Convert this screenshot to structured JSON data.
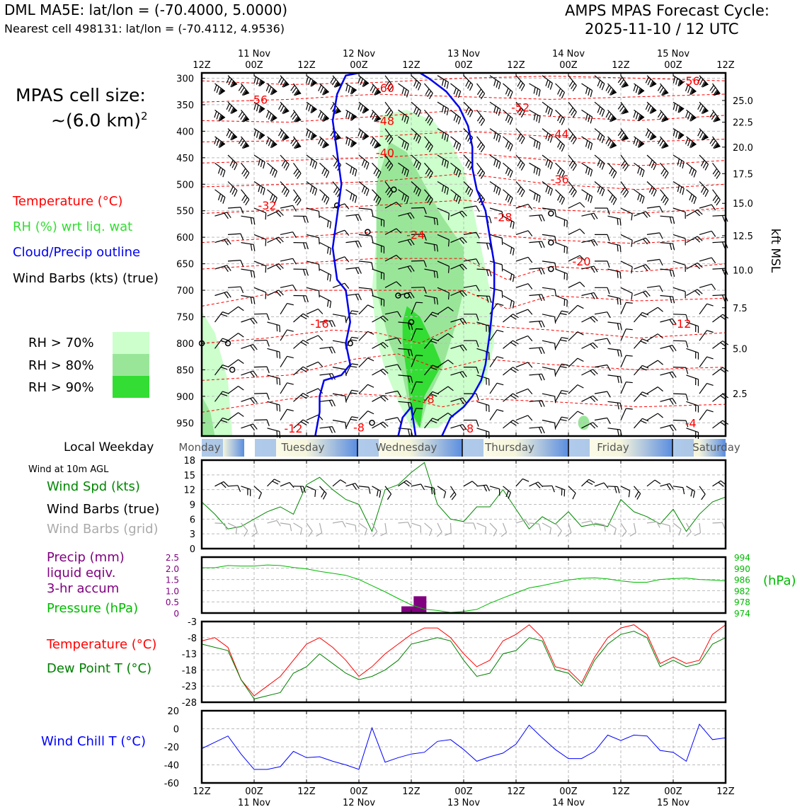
{
  "header": {
    "station": "DML MA5E: lat/lon = (-70.4000, 5.0000)",
    "nearest": "Nearest cell 498131: lat/lon = (-70.4112, 4.9536)",
    "cycle_title": "AMPS MPAS Forecast Cycle:",
    "cycle_date": "2025-11-10 / 12 UTC"
  },
  "legend": {
    "cell_size_1": "MPAS cell size:",
    "cell_size_2": "~(6.0 km)",
    "cell_size_exp": "2",
    "temperature": "Temperature (°C)",
    "rh": "RH (%) wrt liq. wat",
    "cloud": "Cloud/Precip outline",
    "wind": "Wind Barbs (kts) (true)",
    "rh70": "RH > 70%",
    "rh80": "RH > 80%",
    "rh90": "RH > 90%"
  },
  "colors": {
    "temperature": "#ff0000",
    "rh_label": "#33dd33",
    "cloud": "#0000ee",
    "rh70": "#ccffcc",
    "rh80": "#99e699",
    "rh90": "#33dd33",
    "precip": "#800080",
    "pressure": "#00bb00",
    "wind_speed": "#008800",
    "dew_point": "#008000",
    "wind_chill": "#0000ff",
    "grid_barbs": "#aaaaaa"
  },
  "time_axis": {
    "tick_labels": [
      "12Z",
      "00Z",
      "12Z",
      "00Z",
      "12Z",
      "00Z",
      "12Z",
      "00Z",
      "12Z",
      "00Z",
      "12Z"
    ],
    "date_labels": [
      "11 Nov",
      "12 Nov",
      "13 Nov",
      "14 Nov",
      "15 Nov"
    ],
    "date_tick_index": [
      1,
      3,
      5,
      7,
      9
    ]
  },
  "weekday": {
    "label": "Local Weekday",
    "days": [
      "Monday",
      "Tuesday",
      "Wednesday",
      "Thursday",
      "Friday",
      "Saturday"
    ]
  },
  "chart_data": [
    {
      "type": "heatmap",
      "title": "Vertical profile",
      "y_left_ticks": [
        300,
        350,
        400,
        450,
        500,
        550,
        600,
        650,
        700,
        750,
        800,
        850,
        900,
        950
      ],
      "y_right_label": "kft MSL",
      "y_right_ticks": [
        {
          "label": "25.0",
          "hpa": 342
        },
        {
          "label": "22.5",
          "hpa": 383
        },
        {
          "label": "20.0",
          "hpa": 430
        },
        {
          "label": "17.5",
          "hpa": 480
        },
        {
          "label": "15.0",
          "hpa": 536
        },
        {
          "label": "12.5",
          "hpa": 597
        },
        {
          "label": "10.0",
          "hpa": 662
        },
        {
          "label": "7.5",
          "hpa": 733
        },
        {
          "label": "5.0",
          "hpa": 810
        },
        {
          "label": "2.5",
          "hpa": 895
        }
      ],
      "ylim": [
        290,
        975
      ],
      "temperature_labels": [
        {
          "text": "-56",
          "hours": 13,
          "hpa": 340
        },
        {
          "text": "-60",
          "hours": 42,
          "hpa": 318
        },
        {
          "text": "-56",
          "hours": 112,
          "hpa": 305
        },
        {
          "text": "-52",
          "hours": 73,
          "hpa": 355
        },
        {
          "text": "-48",
          "hours": 42,
          "hpa": 380
        },
        {
          "text": "-44",
          "hours": 82,
          "hpa": 405
        },
        {
          "text": "-40",
          "hours": 42,
          "hpa": 440
        },
        {
          "text": "-36",
          "hours": 82,
          "hpa": 490
        },
        {
          "text": "-32",
          "hours": 15,
          "hpa": 540
        },
        {
          "text": "-28",
          "hours": 69,
          "hpa": 562
        },
        {
          "text": "-24",
          "hours": 49,
          "hpa": 595
        },
        {
          "text": "-20",
          "hours": 87,
          "hpa": 645
        },
        {
          "text": "-16",
          "hours": 27,
          "hpa": 763
        },
        {
          "text": "-12",
          "hours": 110,
          "hpa": 763
        },
        {
          "text": "-12",
          "hours": 21,
          "hpa": 960
        },
        {
          "text": "-8",
          "hours": 36,
          "hpa": 958
        },
        {
          "text": "-8",
          "hours": 52,
          "hpa": 905
        },
        {
          "text": "-8",
          "hours": 61,
          "hpa": 960
        },
        {
          "text": "-4",
          "hours": 112,
          "hpa": 950
        }
      ]
    },
    {
      "type": "line",
      "title": "Wind at 10m AGL",
      "labels": [
        "Wind Spd (kts)",
        "Wind Barbs (true)",
        "Wind Barbs (grid)"
      ],
      "ylim": [
        0,
        18
      ],
      "y_ticks": [
        0,
        3,
        6,
        9,
        12,
        15,
        18
      ],
      "x_hours": [
        0,
        3,
        6,
        9,
        12,
        15,
        18,
        21,
        24,
        27,
        30,
        33,
        36,
        39,
        42,
        45,
        48,
        51,
        54,
        57,
        60,
        63,
        66,
        69,
        72,
        75,
        78,
        81,
        84,
        87,
        90,
        93,
        96,
        99,
        102,
        105,
        108,
        111,
        114,
        117,
        120
      ],
      "wind_speed": [
        9.5,
        7,
        4,
        4.5,
        6,
        7.5,
        8.5,
        7,
        13,
        14.5,
        12,
        10,
        9,
        3.5,
        12,
        13,
        15.5,
        17.5,
        9,
        6,
        5.5,
        8.5,
        8.5,
        12,
        8,
        4,
        6.5,
        5,
        7.5,
        4.5,
        5,
        4.5,
        10,
        7.5,
        6.5,
        5,
        8,
        3.5,
        7,
        9.5,
        10.5
      ]
    },
    {
      "type": "bar",
      "title": "Precip and Pressure",
      "labels": [
        "Precip (mm)",
        "liquid eqiv.",
        "3-hr accum",
        "Pressure (hPa)"
      ],
      "precip_ylim": [
        0,
        2.5
      ],
      "precip_ticks": [
        "0",
        "0.5",
        "1.0",
        "1.5",
        "2.0",
        "2.5"
      ],
      "precip_bars": [
        {
          "hours": 47.2,
          "value": 0.3
        },
        {
          "hours": 50,
          "value": 0.75
        }
      ],
      "pressure_ylim": [
        974,
        994
      ],
      "pressure_ticks": [
        974,
        978,
        982,
        986,
        990,
        994
      ],
      "pressure_unit": "(hPa)",
      "pressure_hours": [
        0,
        3,
        6,
        9,
        12,
        15,
        18,
        21,
        24,
        27,
        30,
        33,
        36,
        39,
        42,
        45,
        48,
        51,
        54,
        57,
        60,
        63,
        66,
        69,
        72,
        75,
        78,
        81,
        84,
        87,
        90,
        93,
        96,
        99,
        102,
        105,
        108,
        111,
        114,
        117,
        120
      ],
      "pressure": [
        990.2,
        990.2,
        991,
        990.8,
        990.8,
        991.2,
        991,
        990.3,
        989.8,
        988.9,
        988.2,
        987.5,
        986,
        983.8,
        981.6,
        979.2,
        976.9,
        975.4,
        974.9,
        974.2,
        974.6,
        975.3,
        977.5,
        979.4,
        981.2,
        983,
        983.8,
        984.8,
        985.8,
        986.4,
        986.6,
        986.2,
        985.5,
        985,
        985,
        986,
        986.3,
        986.5,
        986,
        985.8,
        985.5
      ]
    },
    {
      "type": "line",
      "title": "Temperature and Dew Point",
      "labels": [
        "Temperature (°C)",
        "Dew Point T (°C)"
      ],
      "ylim": [
        -28,
        -3
      ],
      "y_ticks": [
        -28,
        -23,
        -18,
        -13,
        -8,
        -3
      ],
      "x_hours": [
        0,
        3,
        6,
        9,
        12,
        15,
        18,
        21,
        24,
        27,
        30,
        33,
        36,
        39,
        42,
        45,
        48,
        51,
        54,
        57,
        60,
        63,
        66,
        69,
        72,
        75,
        78,
        81,
        84,
        87,
        90,
        93,
        96,
        99,
        102,
        105,
        108,
        111,
        114,
        117,
        120
      ],
      "temperature": [
        -9,
        -8,
        -11,
        -21,
        -26,
        -23,
        -20,
        -15,
        -10,
        -8,
        -11,
        -15,
        -20,
        -17,
        -13,
        -10,
        -7,
        -5,
        -5,
        -8,
        -13,
        -17,
        -15,
        -9,
        -7,
        -4,
        -8,
        -17,
        -18,
        -22,
        -14,
        -8,
        -5,
        -4,
        -7,
        -16,
        -14,
        -16,
        -15,
        -7,
        -4
      ],
      "dew_point": [
        -10,
        -11,
        -12,
        -21,
        -27,
        -26,
        -25,
        -19,
        -17,
        -13,
        -16,
        -19,
        -21,
        -20,
        -18,
        -15,
        -10,
        -9,
        -8,
        -9,
        -15,
        -20,
        -19,
        -13,
        -12,
        -8,
        -9,
        -18,
        -19,
        -23,
        -15,
        -10,
        -7,
        -6,
        -8,
        -17,
        -15,
        -17,
        -16,
        -10,
        -8
      ]
    },
    {
      "type": "line",
      "title": "Wind Chill",
      "labels": [
        "Wind Chill T (°C)"
      ],
      "ylim": [
        -60,
        20
      ],
      "y_ticks": [
        -60,
        -40,
        -20,
        0,
        20
      ],
      "x_hours": [
        0,
        3,
        6,
        9,
        12,
        15,
        18,
        21,
        24,
        27,
        30,
        33,
        36,
        39,
        42,
        45,
        48,
        51,
        54,
        57,
        60,
        63,
        66,
        69,
        72,
        75,
        78,
        81,
        84,
        87,
        90,
        93,
        96,
        99,
        102,
        105,
        108,
        111,
        114,
        117,
        120
      ],
      "wind_chill": [
        -22,
        -15,
        -8,
        -28,
        -45,
        -45,
        -42,
        -25,
        -32,
        -31,
        -36,
        -40,
        -45,
        1,
        -37,
        -32,
        -28,
        -26,
        -14,
        -12,
        -23,
        -36,
        -31,
        -27,
        -17,
        4,
        -10,
        -23,
        -33,
        -33,
        -25,
        -7,
        -13,
        -7,
        -8,
        -24,
        -26,
        -36,
        5,
        -12,
        -10
      ]
    }
  ]
}
